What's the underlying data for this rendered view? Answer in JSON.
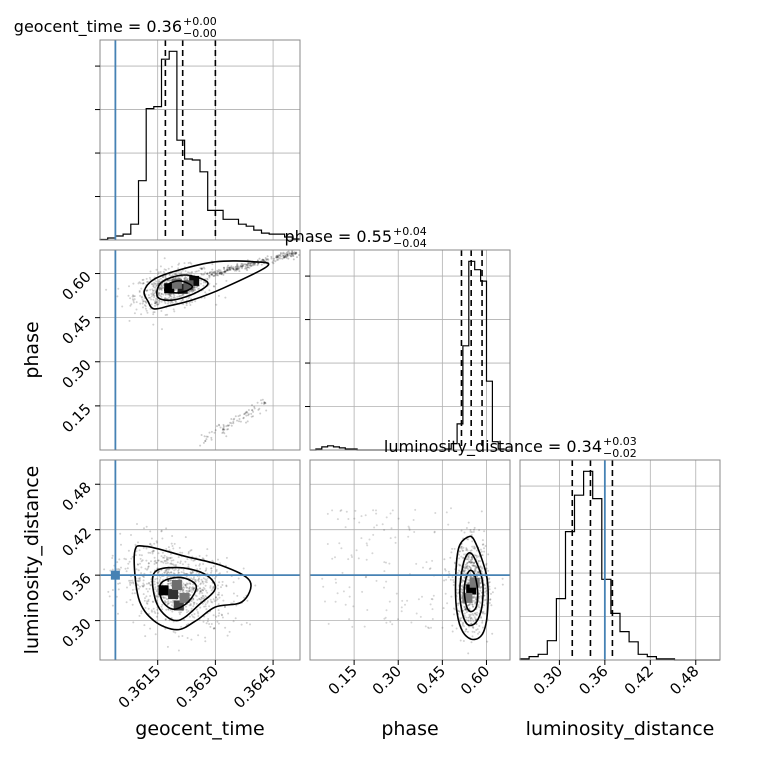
{
  "chart_data": {
    "type": "corner",
    "parameters": [
      "geocent_time",
      "phase",
      "luminosity_distance"
    ],
    "axis_labels": {
      "geocent_time": "geocent_time",
      "phase": "phase",
      "luminosity_distance": "luminosity_distance"
    },
    "titles": [
      {
        "param": "geocent_time",
        "name": "geocent_time",
        "value": "0.36",
        "plus": "+0.00",
        "minus": "−0.00"
      },
      {
        "param": "phase",
        "name": "phase",
        "value": "0.55",
        "plus": "+0.04",
        "minus": "−0.04"
      },
      {
        "param": "luminosity_distance",
        "name": "luminosity_distance",
        "value": "0.34",
        "plus": "+0.03",
        "minus": "−0.02"
      }
    ],
    "ranges": {
      "geocent_time": [
        0.36,
        0.3652
      ],
      "phase": [
        0.0,
        0.68
      ],
      "luminosity_distance": [
        0.248,
        0.512
      ]
    },
    "ticks": {
      "geocent_time": {
        "values": [
          0.3615,
          0.363,
          0.3645
        ],
        "labels": [
          "0.3615",
          "0.3630",
          "0.3645"
        ]
      },
      "phase": {
        "values": [
          0.15,
          0.3,
          0.45,
          0.6
        ],
        "labels": [
          "0.15",
          "0.30",
          "0.45",
          "0.60"
        ]
      },
      "luminosity_distance": {
        "values": [
          0.3,
          0.36,
          0.42,
          0.48
        ],
        "labels": [
          "0.30",
          "0.36",
          "0.42",
          "0.48"
        ]
      }
    },
    "truths": {
      "geocent_time": 0.3604,
      "luminosity_distance": 0.36
    },
    "quantiles": {
      "geocent_time": [
        0.3617,
        0.36215,
        0.363
      ],
      "phase": [
        0.515,
        0.548,
        0.585
      ],
      "luminosity_distance": [
        0.317,
        0.341,
        0.37
      ]
    },
    "histograms": {
      "geocent_time": {
        "edges": [
          0.36,
          0.3602,
          0.3604,
          0.3606,
          0.3608,
          0.361,
          0.3612,
          0.3614,
          0.3616,
          0.3618,
          0.362,
          0.3622,
          0.3624,
          0.3626,
          0.3628,
          0.363,
          0.3632,
          0.3634,
          0.3636,
          0.3638,
          0.364,
          0.3642,
          0.3644,
          0.3646,
          0.3648,
          0.365,
          0.3652
        ],
        "counts": [
          0.5,
          2,
          4,
          6,
          16,
          60,
          133,
          135,
          183,
          191,
          101,
          82,
          81,
          69,
          30,
          30,
          21,
          21,
          16,
          14,
          10,
          7,
          6,
          6,
          3,
          1
        ]
      },
      "phase": {
        "edges": [
          0.0,
          0.02,
          0.04,
          0.06,
          0.08,
          0.1,
          0.12,
          0.14,
          0.16,
          0.18,
          0.2,
          0.22,
          0.24,
          0.26,
          0.28,
          0.3,
          0.32,
          0.34,
          0.36,
          0.38,
          0.4,
          0.42,
          0.44,
          0.46,
          0.48,
          0.5,
          0.52,
          0.54,
          0.56,
          0.58,
          0.6,
          0.62,
          0.64,
          0.66,
          0.68
        ],
        "counts": [
          0,
          1,
          3,
          4,
          3,
          2,
          1,
          1,
          0,
          0,
          0,
          0,
          0,
          0,
          0,
          0,
          0,
          0,
          0,
          0,
          0,
          0,
          0,
          1,
          6,
          25,
          100,
          181,
          173,
          162,
          66,
          8,
          1,
          0
        ]
      },
      "luminosity_distance": {
        "edges": [
          0.248,
          0.26,
          0.272,
          0.284,
          0.296,
          0.308,
          0.32,
          0.332,
          0.344,
          0.356,
          0.368,
          0.38,
          0.392,
          0.404,
          0.416,
          0.428,
          0.44,
          0.452,
          0.464,
          0.476,
          0.488,
          0.5,
          0.512
        ],
        "counts": [
          1,
          3,
          5,
          17,
          54,
          113,
          145,
          166,
          142,
          71,
          41,
          25,
          16,
          5,
          3,
          1,
          1,
          0,
          0,
          0,
          0,
          0
        ]
      }
    },
    "contours": {
      "phase_vs_geocent_time": {
        "center": {
          "x": 0.362,
          "y": 0.555
        },
        "levels": [
          {
            "points": [
              [
                0.36125,
                0.505
              ],
              [
                0.3614,
                0.48
              ],
              [
                0.3618,
                0.49
              ],
              [
                0.3624,
                0.51
              ],
              [
                0.3632,
                0.55
              ],
              [
                0.36435,
                0.625
              ],
              [
                0.364,
                0.64
              ],
              [
                0.363,
                0.64
              ],
              [
                0.362,
                0.61
              ],
              [
                0.3614,
                0.58
              ],
              [
                0.36115,
                0.54
              ]
            ]
          },
          {
            "points": [
              [
                0.3615,
                0.52
              ],
              [
                0.3619,
                0.51
              ],
              [
                0.3625,
                0.535
              ],
              [
                0.3628,
                0.57
              ],
              [
                0.3622,
                0.595
              ],
              [
                0.3616,
                0.57
              ]
            ]
          },
          {
            "points": [
              [
                0.3617,
                0.54
              ],
              [
                0.3621,
                0.535
              ],
              [
                0.3624,
                0.555
              ],
              [
                0.3621,
                0.575
              ],
              [
                0.3618,
                0.565
              ]
            ]
          }
        ],
        "bins": [
          {
            "x": 0.3618,
            "y": 0.55,
            "shade": 0.0
          },
          {
            "x": 0.36215,
            "y": 0.548,
            "shade": 0.15
          },
          {
            "x": 0.36245,
            "y": 0.575,
            "shade": 0.05
          },
          {
            "x": 0.3623,
            "y": 0.56,
            "shade": 0.45
          },
          {
            "x": 0.362,
            "y": 0.565,
            "shade": 0.55
          }
        ]
      },
      "luminosity_distance_vs_geocent_time": {
        "center": {
          "x": 0.36185,
          "y": 0.34
        },
        "levels": [
          {
            "points": [
              [
                0.3609,
                0.39
              ],
              [
                0.3612,
                0.398
              ],
              [
                0.3622,
                0.385
              ],
              [
                0.3632,
                0.372
              ],
              [
                0.3639,
                0.352
              ],
              [
                0.3637,
                0.325
              ],
              [
                0.363,
                0.318
              ],
              [
                0.3625,
                0.3
              ],
              [
                0.362,
                0.288
              ],
              [
                0.3614,
                0.3
              ],
              [
                0.361,
                0.33
              ]
            ]
          },
          {
            "points": [
              [
                0.3614,
                0.362
              ],
              [
                0.362,
                0.37
              ],
              [
                0.3627,
                0.362
              ],
              [
                0.363,
                0.343
              ],
              [
                0.3626,
                0.322
              ],
              [
                0.362,
                0.3
              ],
              [
                0.3615,
                0.32
              ]
            ]
          },
          {
            "points": [
              [
                0.3616,
                0.35
              ],
              [
                0.3621,
                0.357
              ],
              [
                0.3625,
                0.346
              ],
              [
                0.3623,
                0.325
              ],
              [
                0.3619,
                0.315
              ],
              [
                0.3616,
                0.328
              ]
            ]
          }
        ],
        "bins": [
          {
            "x": 0.36165,
            "y": 0.34,
            "shade": 0.0
          },
          {
            "x": 0.3619,
            "y": 0.335,
            "shade": 0.25
          },
          {
            "x": 0.36205,
            "y": 0.32,
            "shade": 0.35
          },
          {
            "x": 0.362,
            "y": 0.347,
            "shade": 0.55
          },
          {
            "x": 0.3622,
            "y": 0.33,
            "shade": 0.6
          }
        ]
      },
      "luminosity_distance_vs_phase": {
        "center": {
          "x": 0.548,
          "y": 0.34
        },
        "levels": [
          {
            "points": [
              [
                0.495,
                0.35
              ],
              [
                0.505,
                0.395
              ],
              [
                0.535,
                0.41
              ],
              [
                0.56,
                0.405
              ],
              [
                0.6,
                0.36
              ],
              [
                0.605,
                0.32
              ],
              [
                0.59,
                0.285
              ],
              [
                0.555,
                0.275
              ],
              [
                0.52,
                0.285
              ],
              [
                0.5,
                0.31
              ]
            ]
          },
          {
            "points": [
              [
                0.51,
                0.345
              ],
              [
                0.525,
                0.38
              ],
              [
                0.55,
                0.388
              ],
              [
                0.585,
                0.355
              ],
              [
                0.585,
                0.32
              ],
              [
                0.565,
                0.298
              ],
              [
                0.535,
                0.295
              ],
              [
                0.515,
                0.315
              ]
            ]
          },
          {
            "points": [
              [
                0.525,
                0.345
              ],
              [
                0.54,
                0.365
              ],
              [
                0.558,
                0.362
              ],
              [
                0.57,
                0.34
              ],
              [
                0.565,
                0.318
              ],
              [
                0.545,
                0.312
              ],
              [
                0.53,
                0.322
              ]
            ]
          }
        ],
        "bins": [
          {
            "x": 0.548,
            "y": 0.341,
            "shade": 0.0
          },
          {
            "x": 0.535,
            "y": 0.33,
            "shade": 0.6
          },
          {
            "x": 0.56,
            "y": 0.35,
            "shade": 0.6
          }
        ]
      }
    }
  }
}
